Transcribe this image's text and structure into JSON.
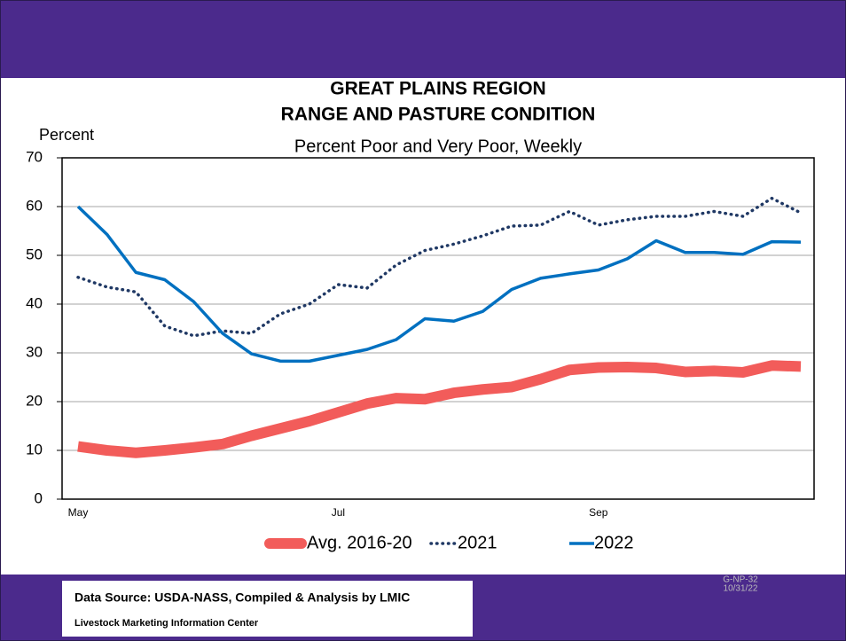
{
  "chart_data": {
    "type": "line",
    "title": "GREAT PLAINS REGION",
    "title2": "RANGE AND PASTURE CONDITION",
    "subtitle": "Percent Poor and Very Poor, Weekly",
    "ylabel": "Percent",
    "categories": [
      "May",
      null,
      null,
      null,
      null,
      null,
      null,
      null,
      null,
      "Jul",
      null,
      null,
      null,
      null,
      null,
      null,
      null,
      null,
      "Sep",
      null,
      null,
      null,
      null,
      null,
      null,
      null
    ],
    "series": [
      {
        "name": "Avg. 2016-20",
        "color": "#f25c5a",
        "style": "solid",
        "values": [
          10.8,
          10.0,
          9.5,
          10.0,
          10.6,
          11.3,
          13.0,
          14.5,
          16.0,
          17.8,
          19.6,
          20.7,
          20.5,
          21.8,
          22.5,
          23.0,
          24.6,
          26.5,
          27.0,
          27.1,
          26.9,
          26.1,
          26.3,
          26.0,
          27.4,
          27.2
        ]
      },
      {
        "name": "2021",
        "color": "#1f3864",
        "style": "dotted",
        "values": [
          45.5,
          43.5,
          42.5,
          35.5,
          33.5,
          34.5,
          34.0,
          38.0,
          40.0,
          44.0,
          43.3,
          48.0,
          51.0,
          52.3,
          54.0,
          56.0,
          56.2,
          59.0,
          56.2,
          57.3,
          58.0,
          58.0,
          59.0,
          58.0,
          61.7,
          58.7
        ]
      },
      {
        "name": "2022",
        "color": "#0070c0",
        "style": "solid",
        "values": [
          60.0,
          54.3,
          46.5,
          45.0,
          40.5,
          34.0,
          29.8,
          28.3,
          28.3,
          29.5,
          30.7,
          32.7,
          37.0,
          36.5,
          38.5,
          43.0,
          45.3,
          46.2,
          47.0,
          49.3,
          53.0,
          50.6,
          50.6,
          50.2,
          52.8,
          52.7
        ]
      }
    ],
    "ylim": [
      0,
      70
    ],
    "yticks": [
      0,
      10,
      20,
      30,
      40,
      50,
      60,
      70
    ],
    "grid": true,
    "legend": "bottom"
  },
  "footer": {
    "source": "Data Source:  USDA-NASS, Compiled & Analysis by LMIC",
    "org": "Livestock Marketing Information Center",
    "code": "G-NP-32",
    "date": "10/31/22"
  }
}
